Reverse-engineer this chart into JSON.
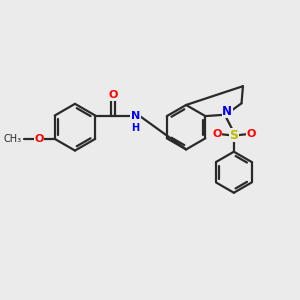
{
  "bg_color": "#ebebeb",
  "bond_color": "#2a2a2a",
  "nitrogen_color": "#0000ff",
  "oxygen_color": "#ff0000",
  "sulfur_color": "#bbbb00",
  "line_width": 1.6,
  "figsize": [
    3.0,
    3.0
  ],
  "dpi": 100,
  "xlim": [
    0,
    10
  ],
  "ylim": [
    0,
    10
  ]
}
